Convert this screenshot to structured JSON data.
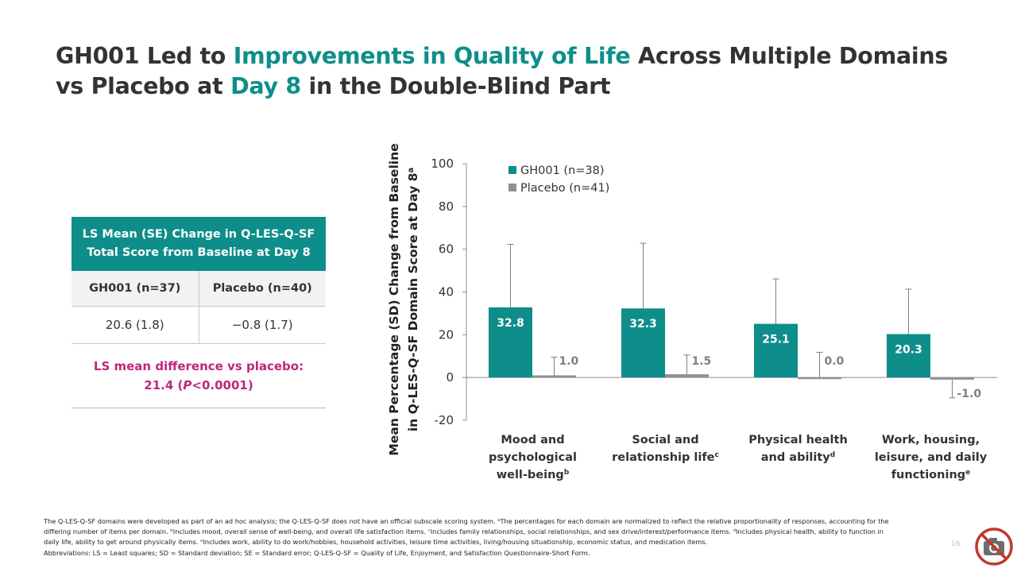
{
  "title": {
    "line1_a": "GH001 Led to ",
    "line1_b": "Improvements in Quality of Life",
    "line1_c": " Across Multiple Domains",
    "line2_a": "vs Placebo at ",
    "line2_b": "Day 8",
    "line2_c": " in the Double-Blind Part"
  },
  "table": {
    "header_line1": "LS Mean (SE) Change in Q-LES-Q-SF",
    "header_line2": "Total Score from Baseline at Day 8",
    "col1": "GH001 (n=37)",
    "col2": "Placebo (n=40)",
    "val1": "20.6 (1.8)",
    "val2": "−0.8 (1.7)",
    "diff_line1": "LS mean difference vs placebo:",
    "diff_line2_a": "21.4 (",
    "diff_line2_p": "P",
    "diff_line2_b": "<0.0001)"
  },
  "chart_data": {
    "type": "bar",
    "ylabel_line1": "Mean Percentage (SD) Change from Baseline",
    "ylabel_line2": "in Q-LES-Q-SF Domain Score at Day 8",
    "ylabel_sup": "a",
    "ylim": [
      -20,
      100
    ],
    "yticks": [
      "100",
      "80",
      "60",
      "40",
      "20",
      "0",
      "-20"
    ],
    "legend_position": "top-left",
    "categories": [
      {
        "lines": [
          "Mood and",
          "psychological",
          "well-being"
        ],
        "sup": "b"
      },
      {
        "lines": [
          "Social and",
          "relationship life"
        ],
        "sup": "c"
      },
      {
        "lines": [
          "Physical health",
          "and ability"
        ],
        "sup": "d"
      },
      {
        "lines": [
          "Work, housing,",
          "leisure, and daily",
          "functioning"
        ],
        "sup": "e"
      }
    ],
    "series": [
      {
        "name": "GH001 (n=38)",
        "color": "#0e8e8a",
        "values": [
          32.8,
          32.3,
          25.1,
          20.3
        ],
        "labels": [
          "32.8",
          "32.3",
          "25.1",
          "20.3"
        ],
        "sd": [
          29.5,
          30.5,
          21.0,
          21.0
        ]
      },
      {
        "name": "Placebo (n=41)",
        "color": "#8c9191",
        "values": [
          1.0,
          1.5,
          0.0,
          -1.0
        ],
        "labels": [
          "1.0",
          "1.5",
          "0.0",
          "-1.0"
        ],
        "sd": [
          8.5,
          9.0,
          11.8,
          8.5
        ]
      }
    ]
  },
  "footnote": {
    "line1": "The Q-LES-Q-SF domains were developed as part of an ad hoc analysis; the Q-LES-Q-SF does not have an official subscale scoring system. ᵃThe percentages for each domain are normalized to reflect the relative proportionality of responses, accounting for the",
    "line2": "differing number of items per domain. ᵇIncludes mood, overall sense of well-being, and overall life satisfaction items. ᶜIncludes family relationships, social relationships, and sex drive/interest/performance items. ᵈIncludes physical health, ability to function in",
    "line3": "daily life, ability to get around physically items. ᵉIncludes work, ability to do work/hobbies, household activities, leisure time activities, living/housing situationship, economic status, and medication items.",
    "line4": "Abbreviations: LS = Least squares; SD = Standard deviation; SE = Standard error; Q-LES-Q-SF = Quality of Life, Enjoyment, and Satisfaction Questionnaire-Short Form."
  },
  "page_number": "16",
  "icons": {
    "no_photo": "no-photography-icon"
  }
}
